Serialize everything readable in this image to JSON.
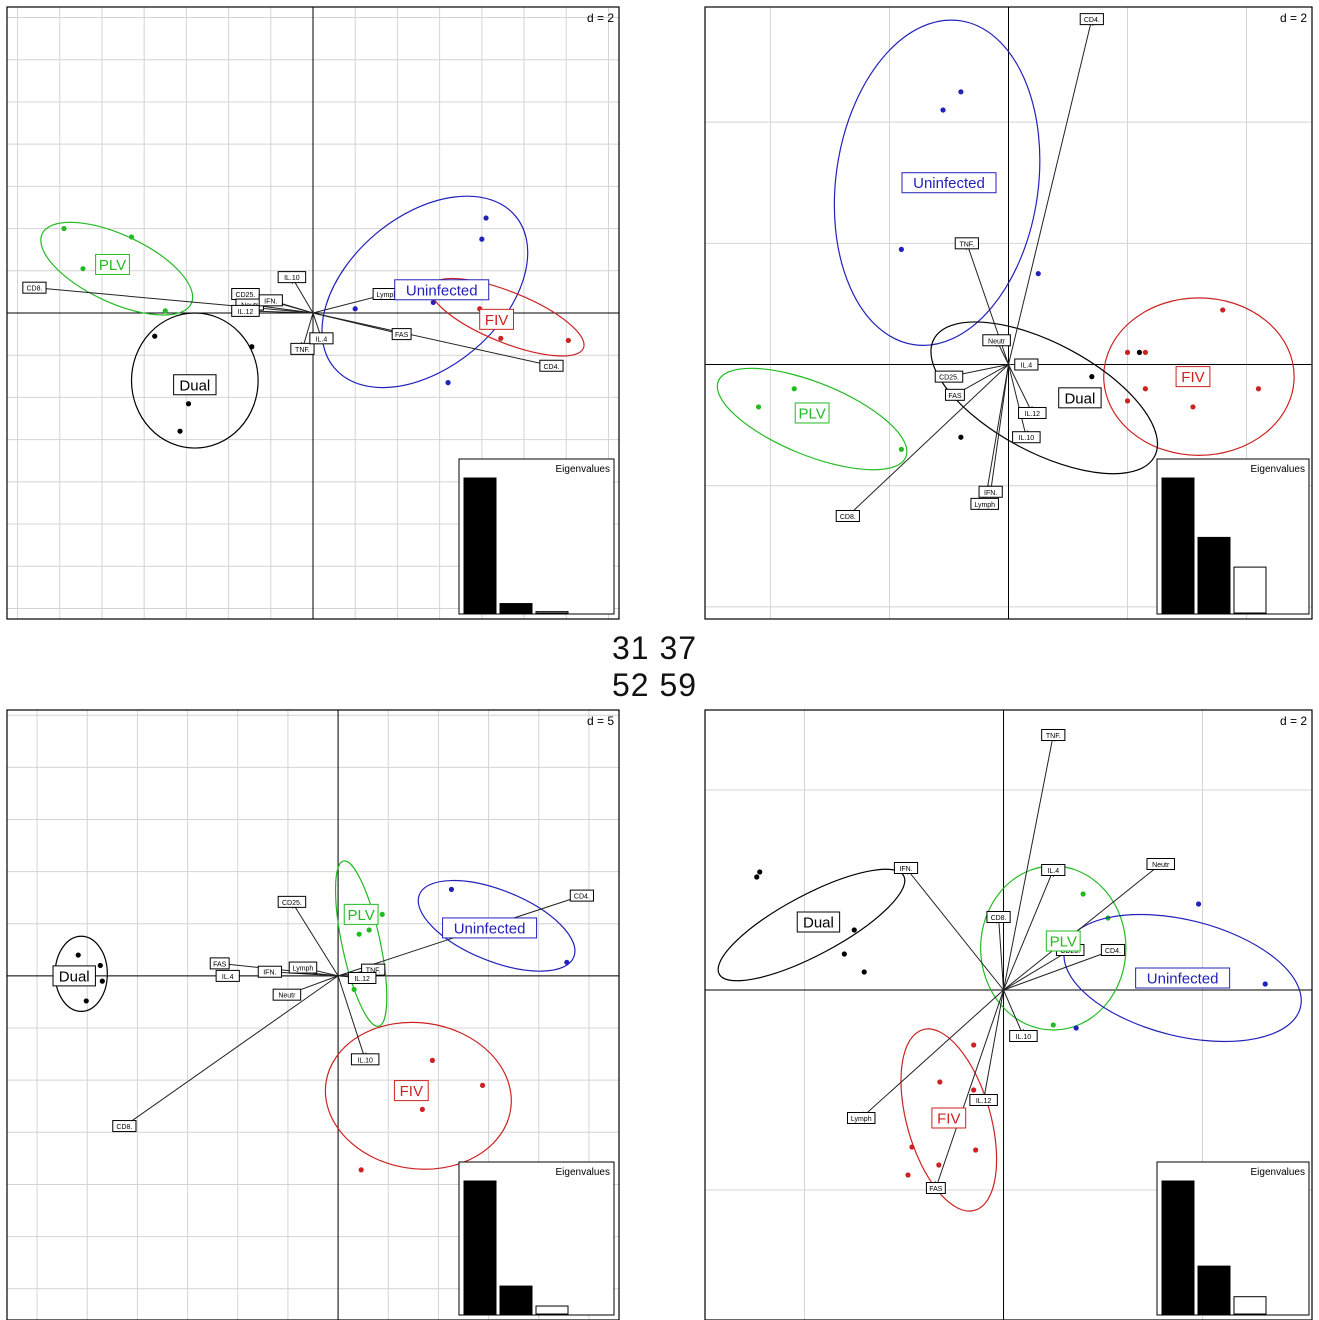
{
  "center_labels": {
    "row1": "31 37",
    "row2": "52 59"
  },
  "colors": {
    "Dual": "#000000",
    "PLV": "#22bb22",
    "Uninfected": "#2222bb",
    "FIV": "#cc2222",
    "grid": "#d4d4d4",
    "axis": "#000000"
  },
  "chart_data": [
    {
      "type": "scatter",
      "d_label": "d = 2",
      "eigen_label": "Eigenvalues",
      "xlim": [
        -14.5,
        14.5
      ],
      "ylim": [
        -14.5,
        14.5
      ],
      "eigenvalues": [
        1.0,
        0.07,
        0.01
      ],
      "groups": [
        {
          "name": "PLV",
          "label_at": [
            -9.5,
            2.3
          ],
          "points": [
            [
              -11.8,
              4.0
            ],
            [
              -8.6,
              3.6
            ],
            [
              -10.9,
              2.1
            ],
            [
              -7.0,
              0.1
            ]
          ],
          "ellipse": {
            "cx": -9.3,
            "cy": 2.1,
            "rx": 3.9,
            "ry": 1.6,
            "angle": -25
          }
        },
        {
          "name": "Dual",
          "label_at": [
            -5.6,
            -3.4
          ],
          "points": [
            [
              -7.5,
              -1.1
            ],
            [
              -2.9,
              -1.6
            ],
            [
              -5.9,
              -4.3
            ],
            [
              -6.3,
              -5.6
            ]
          ],
          "ellipse": {
            "cx": -5.6,
            "cy": -3.2,
            "rx": 3.0,
            "ry": 3.2,
            "angle": 0
          }
        },
        {
          "name": "Uninfected",
          "label_at": [
            6.1,
            1.1
          ],
          "points": [
            [
              8.2,
              4.5
            ],
            [
              8.0,
              3.5
            ],
            [
              2.0,
              0.2
            ],
            [
              5.7,
              0.5
            ],
            [
              6.4,
              -3.3
            ]
          ],
          "ellipse": {
            "cx": 5.3,
            "cy": 1.0,
            "rx": 5.6,
            "ry": 3.6,
            "angle": 40
          }
        },
        {
          "name": "FIV",
          "label_at": [
            8.7,
            -0.3
          ],
          "points": [
            [
              7.9,
              0.2
            ],
            [
              12.1,
              -1.3
            ],
            [
              8.9,
              -1.2
            ]
          ],
          "ellipse": {
            "cx": 9.2,
            "cy": -0.2,
            "rx": 3.9,
            "ry": 1.2,
            "angle": -22
          }
        }
      ],
      "arrows": [
        {
          "label": "CD8.",
          "x": -13.2,
          "y": 1.2
        },
        {
          "label": "CD25.",
          "x": -3.2,
          "y": 0.9
        },
        {
          "label": "Neutr",
          "x": -3.0,
          "y": 0.4
        },
        {
          "label": "IL.12",
          "x": -3.2,
          "y": 0.1
        },
        {
          "label": "IFN.",
          "x": -2.0,
          "y": 0.6
        },
        {
          "label": "IL.10",
          "x": -1.0,
          "y": 1.7
        },
        {
          "label": "TNF.",
          "x": -0.5,
          "y": -1.7
        },
        {
          "label": "IL.4",
          "x": 0.4,
          "y": -1.2
        },
        {
          "label": "Lymph",
          "x": 3.5,
          "y": 0.9
        },
        {
          "label": "FAS",
          "x": 4.2,
          "y": -1.0
        },
        {
          "label": "CD4.",
          "x": 11.3,
          "y": -2.5
        }
      ]
    },
    {
      "type": "scatter",
      "d_label": "d = 2",
      "eigen_label": "Eigenvalues",
      "xlim": [
        -5.1,
        5.1
      ],
      "ylim": [
        -4.2,
        5.9
      ],
      "eigenvalues": [
        1.0,
        0.56,
        0.34
      ],
      "groups": [
        {
          "name": "Uninfected",
          "label_at": [
            -1.0,
            3.0
          ],
          "points": [
            [
              -0.8,
              4.5
            ],
            [
              -1.1,
              4.2
            ],
            [
              -1.7,
              3.1
            ],
            [
              -1.8,
              1.9
            ],
            [
              0.5,
              1.5
            ]
          ],
          "ellipse": {
            "cx": -1.2,
            "cy": 3.0,
            "rx": 1.7,
            "ry": 2.7,
            "angle": -8
          }
        },
        {
          "name": "FIV",
          "label_at": [
            3.1,
            -0.2
          ],
          "points": [
            [
              3.6,
              0.9
            ],
            [
              2.0,
              0.2
            ],
            [
              2.3,
              0.2
            ],
            [
              2.3,
              -0.4
            ],
            [
              4.2,
              -0.4
            ],
            [
              3.1,
              -0.7
            ],
            [
              2.0,
              -0.6
            ]
          ],
          "ellipse": {
            "cx": 3.2,
            "cy": -0.2,
            "rx": 1.6,
            "ry": 1.3,
            "angle": 0
          }
        },
        {
          "name": "Dual",
          "label_at": [
            1.2,
            -0.55
          ],
          "points": [
            [
              2.2,
              0.2
            ],
            [
              1.4,
              -0.2
            ],
            [
              0.9,
              -0.6
            ],
            [
              -0.8,
              -1.2
            ]
          ],
          "ellipse": {
            "cx": 0.6,
            "cy": -0.55,
            "rx": 2.1,
            "ry": 0.9,
            "angle": -28
          }
        },
        {
          "name": "PLV",
          "label_at": [
            -3.3,
            -0.8
          ],
          "points": [
            [
              -3.6,
              -0.4
            ],
            [
              -4.2,
              -0.7
            ],
            [
              -3.4,
              -0.7
            ],
            [
              -1.8,
              -1.4
            ]
          ],
          "ellipse": {
            "cx": -3.3,
            "cy": -0.9,
            "rx": 1.7,
            "ry": 0.6,
            "angle": -22
          }
        }
      ],
      "arrows": [
        {
          "label": "CD4.",
          "x": 1.4,
          "y": 5.7
        },
        {
          "label": "TNF.",
          "x": -0.7,
          "y": 2.0
        },
        {
          "label": "Neutr",
          "x": -0.2,
          "y": 0.4
        },
        {
          "label": "IL.4",
          "x": 0.3,
          "y": 0.0
        },
        {
          "label": "CD25.",
          "x": -1.0,
          "y": -0.2
        },
        {
          "label": "FAS",
          "x": -0.9,
          "y": -0.5
        },
        {
          "label": "IL.12",
          "x": 0.4,
          "y": -0.8
        },
        {
          "label": "IL.10",
          "x": 0.3,
          "y": -1.2
        },
        {
          "label": "IFN.",
          "x": -0.3,
          "y": -2.1
        },
        {
          "label": "Lymph",
          "x": -0.4,
          "y": -2.3
        },
        {
          "label": "CD8.",
          "x": -2.7,
          "y": -2.5
        }
      ]
    },
    {
      "type": "scatter",
      "d_label": "d = 5",
      "eigen_label": "Eigenvalues",
      "xlim": [
        -33,
        28
      ],
      "ylim": [
        -33,
        25.5
      ],
      "eigenvalues": [
        1.0,
        0.21,
        0.06
      ],
      "groups": [
        {
          "name": "Dual",
          "label_at": [
            -26.3,
            0.0
          ],
          "points": [
            [
              -27.6,
              0.3
            ],
            [
              -25.9,
              2.0
            ],
            [
              -23.7,
              1.0
            ],
            [
              -23.5,
              -0.5
            ],
            [
              -25.1,
              -2.4
            ]
          ],
          "ellipse": {
            "cx": -25.6,
            "cy": 0.2,
            "rx": 2.6,
            "ry": 3.6,
            "angle": 0
          }
        },
        {
          "name": "PLV",
          "label_at": [
            2.3,
            5.9
          ],
          "points": [
            [
              4.4,
              5.9
            ],
            [
              3.1,
              4.4
            ],
            [
              2.1,
              4.0
            ],
            [
              1.7,
              -0.5
            ],
            [
              1.6,
              -1.3
            ]
          ],
          "ellipse": {
            "cx": 2.3,
            "cy": 3.1,
            "rx": 1.9,
            "ry": 8.1,
            "angle": 12
          }
        },
        {
          "name": "Uninfected",
          "label_at": [
            15.1,
            4.6
          ],
          "points": [
            [
              14.6,
              4.6
            ],
            [
              11.3,
              8.3
            ],
            [
              22.8,
              1.3
            ]
          ],
          "ellipse": {
            "cx": 15.8,
            "cy": 4.8,
            "rx": 8.3,
            "ry": 3.4,
            "angle": -22
          }
        },
        {
          "name": "FIV",
          "label_at": [
            7.3,
            -11.0
          ],
          "points": [
            [
              9.4,
              -8.1
            ],
            [
              14.4,
              -10.5
            ],
            [
              8.4,
              -12.8
            ],
            [
              2.3,
              -18.6
            ]
          ],
          "ellipse": {
            "cx": 8.0,
            "cy": -11.5,
            "rx": 9.3,
            "ry": 7.0,
            "angle": -8
          }
        }
      ],
      "arrows": [
        {
          "label": "CD4.",
          "x": 24.3,
          "y": 7.7
        },
        {
          "label": "CD25.",
          "x": -4.6,
          "y": 7.1
        },
        {
          "label": "FAS",
          "x": -11.8,
          "y": 1.2
        },
        {
          "label": "IL.4",
          "x": -11.0,
          "y": 0.0
        },
        {
          "label": "IFN.",
          "x": -6.8,
          "y": 0.4
        },
        {
          "label": "Lymph",
          "x": -3.5,
          "y": 0.8
        },
        {
          "label": "Neutr",
          "x": -5.1,
          "y": -1.8
        },
        {
          "label": "TNF.",
          "x": 3.5,
          "y": 0.6
        },
        {
          "label": "IL.12",
          "x": 2.4,
          "y": -0.2
        },
        {
          "label": "IL.10",
          "x": 2.7,
          "y": -8.0
        },
        {
          "label": "CD8.",
          "x": -21.3,
          "y": -14.4
        }
      ]
    },
    {
      "type": "scatter",
      "d_label": "d = 2",
      "eigen_label": "Eigenvalues",
      "xlim": [
        -3.0,
        3.1
      ],
      "ylim": [
        -3.3,
        2.8
      ],
      "eigenvalues": [
        1.0,
        0.36,
        0.13
      ],
      "groups": [
        {
          "name": "Dual",
          "label_at": [
            -1.86,
            0.68
          ],
          "points": [
            [
              -2.45,
              1.18
            ],
            [
              -2.48,
              1.13
            ],
            [
              -1.5,
              0.6
            ],
            [
              -1.6,
              0.36
            ],
            [
              -1.4,
              0.18
            ]
          ],
          "ellipse": {
            "cx": -1.93,
            "cy": 0.65,
            "rx": 1.05,
            "ry": 0.3,
            "angle": 28
          }
        },
        {
          "name": "PLV",
          "label_at": [
            0.6,
            0.49
          ],
          "points": [
            [
              0.8,
              0.96
            ],
            [
              1.05,
              0.72
            ],
            [
              0.5,
              -0.35
            ],
            [
              -0.05,
              0.72
            ]
          ],
          "ellipse": {
            "cx": 0.5,
            "cy": 0.42,
            "rx": 0.73,
            "ry": 0.82,
            "angle": 0
          }
        },
        {
          "name": "Uninfected",
          "label_at": [
            1.8,
            0.12
          ],
          "points": [
            [
              1.96,
              0.86
            ],
            [
              2.63,
              0.06
            ],
            [
              0.73,
              -0.38
            ]
          ],
          "ellipse": {
            "cx": 1.8,
            "cy": 0.12,
            "rx": 1.22,
            "ry": 0.58,
            "angle": -14
          }
        },
        {
          "name": "FIV",
          "label_at": [
            -0.55,
            -1.28
          ],
          "points": [
            [
              -0.3,
              -0.55
            ],
            [
              -0.64,
              -0.92
            ],
            [
              -0.3,
              -1.0
            ],
            [
              -0.92,
              -1.57
            ],
            [
              -0.65,
              -1.75
            ],
            [
              -0.28,
              -1.6
            ],
            [
              -0.96,
              -1.85
            ]
          ],
          "ellipse": {
            "cx": -0.55,
            "cy": -1.3,
            "rx": 0.42,
            "ry": 0.94,
            "angle": 16
          }
        }
      ],
      "arrows": [
        {
          "label": "TNF.",
          "x": 0.5,
          "y": 2.55
        },
        {
          "label": "IFN.",
          "x": -0.98,
          "y": 1.22
        },
        {
          "label": "IL.4",
          "x": 0.5,
          "y": 1.2
        },
        {
          "label": "Neutr",
          "x": 1.58,
          "y": 1.26
        },
        {
          "label": "CD8.",
          "x": -0.05,
          "y": 0.73
        },
        {
          "label": "CD25.",
          "x": 0.67,
          "y": 0.4
        },
        {
          "label": "CD4.",
          "x": 1.1,
          "y": 0.4
        },
        {
          "label": "IL.10",
          "x": 0.2,
          "y": -0.46
        },
        {
          "label": "IL.12",
          "x": -0.2,
          "y": -1.1
        },
        {
          "label": "Lymph",
          "x": -1.43,
          "y": -1.28
        },
        {
          "label": "FAS",
          "x": -0.68,
          "y": -1.98
        }
      ]
    }
  ]
}
